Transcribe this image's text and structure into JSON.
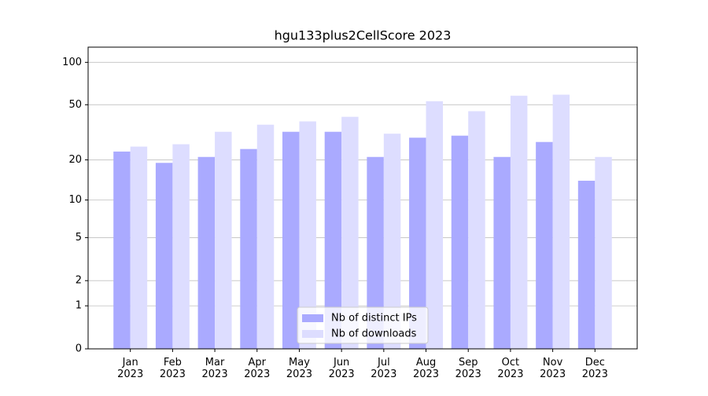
{
  "chart_data": {
    "type": "bar",
    "title": "hgu133plus2CellScore 2023",
    "categories": [
      "Jan\n2023",
      "Feb\n2023",
      "Mar\n2023",
      "Apr\n2023",
      "May\n2023",
      "Jun\n2023",
      "Jul\n2023",
      "Aug\n2023",
      "Sep\n2023",
      "Oct\n2023",
      "Nov\n2023",
      "Dec\n2023"
    ],
    "series": [
      {
        "name": "Nb of distinct IPs",
        "color": "#aaaaff",
        "values": [
          23,
          19,
          21,
          24,
          32,
          32,
          21,
          29,
          30,
          21,
          27,
          14
        ]
      },
      {
        "name": "Nb of downloads",
        "color": "#ddddff",
        "values": [
          25,
          26,
          32,
          36,
          38,
          41,
          31,
          53,
          45,
          58,
          59,
          21
        ]
      }
    ],
    "yscale": "log1p",
    "ylim": [
      0,
      128
    ],
    "yticks": [
      0,
      1,
      2,
      5,
      10,
      20,
      50,
      100
    ],
    "grid": true,
    "legend": "lower center"
  }
}
